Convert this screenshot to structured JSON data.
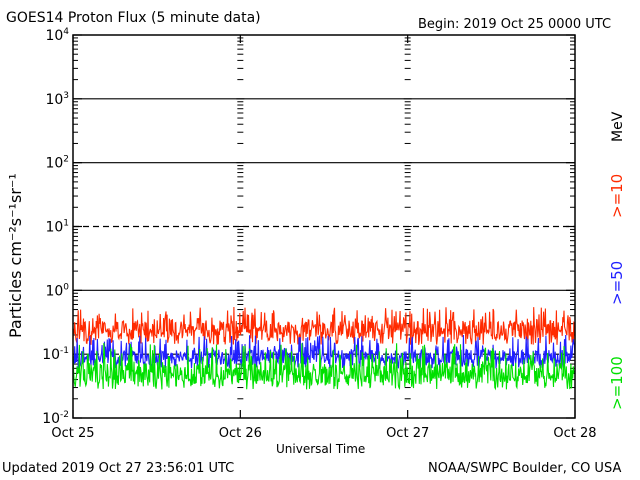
{
  "header": {
    "title": "GOES14 Proton Flux (5 minute data)",
    "begin": "Begin: 2019 Oct 25 0000 UTC"
  },
  "footer": {
    "updated": "Updated 2019 Oct 27 23:56:01 UTC",
    "credit": "NOAA/SWPC Boulder, CO USA"
  },
  "legend": {
    "unit": "MeV",
    "items": [
      {
        "label": ">=10",
        "color": "#ff2a00"
      },
      {
        "label": ">=50",
        "color": "#2020ff"
      },
      {
        "label": ">=100",
        "color": "#00e000"
      }
    ]
  },
  "chart_data": {
    "type": "line",
    "title": "GOES14 Proton Flux (5 minute data)",
    "xlabel": "Universal Time",
    "ylabel": "Particles cm⁻²s⁻¹sr⁻¹",
    "yscale": "log",
    "ylim": [
      0.01,
      10000
    ],
    "y_ticks": [
      {
        "value": 10000,
        "base": "10",
        "exp": "4"
      },
      {
        "value": 1000,
        "base": "10",
        "exp": "3"
      },
      {
        "value": 100,
        "base": "10",
        "exp": "2"
      },
      {
        "value": 10,
        "base": "10",
        "exp": "1"
      },
      {
        "value": 1,
        "base": "10",
        "exp": "0"
      },
      {
        "value": 0.1,
        "base": "10",
        "exp": "-1"
      },
      {
        "value": 0.01,
        "base": "10",
        "exp": "-2"
      }
    ],
    "x_ticks": [
      "Oct 25",
      "Oct 26",
      "Oct 27",
      "Oct 28"
    ],
    "xlim_days": [
      0,
      3
    ],
    "reference_lines": [
      {
        "value": 1000,
        "style": "solid"
      },
      {
        "value": 100,
        "style": "solid"
      },
      {
        "value": 10,
        "style": "dashed"
      },
      {
        "value": 1,
        "style": "solid"
      },
      {
        "value": 0.1,
        "style": "dashed"
      }
    ],
    "series": [
      {
        "name": ">=10 MeV",
        "color": "#ff2a00",
        "typical": 0.25,
        "min": 0.14,
        "max": 0.55
      },
      {
        "name": ">=50 MeV",
        "color": "#2020ff",
        "typical": 0.09,
        "min": 0.06,
        "max": 0.2
      },
      {
        "name": ">=100 MeV",
        "color": "#00e000",
        "typical": 0.05,
        "min": 0.028,
        "max": 0.15
      }
    ]
  }
}
